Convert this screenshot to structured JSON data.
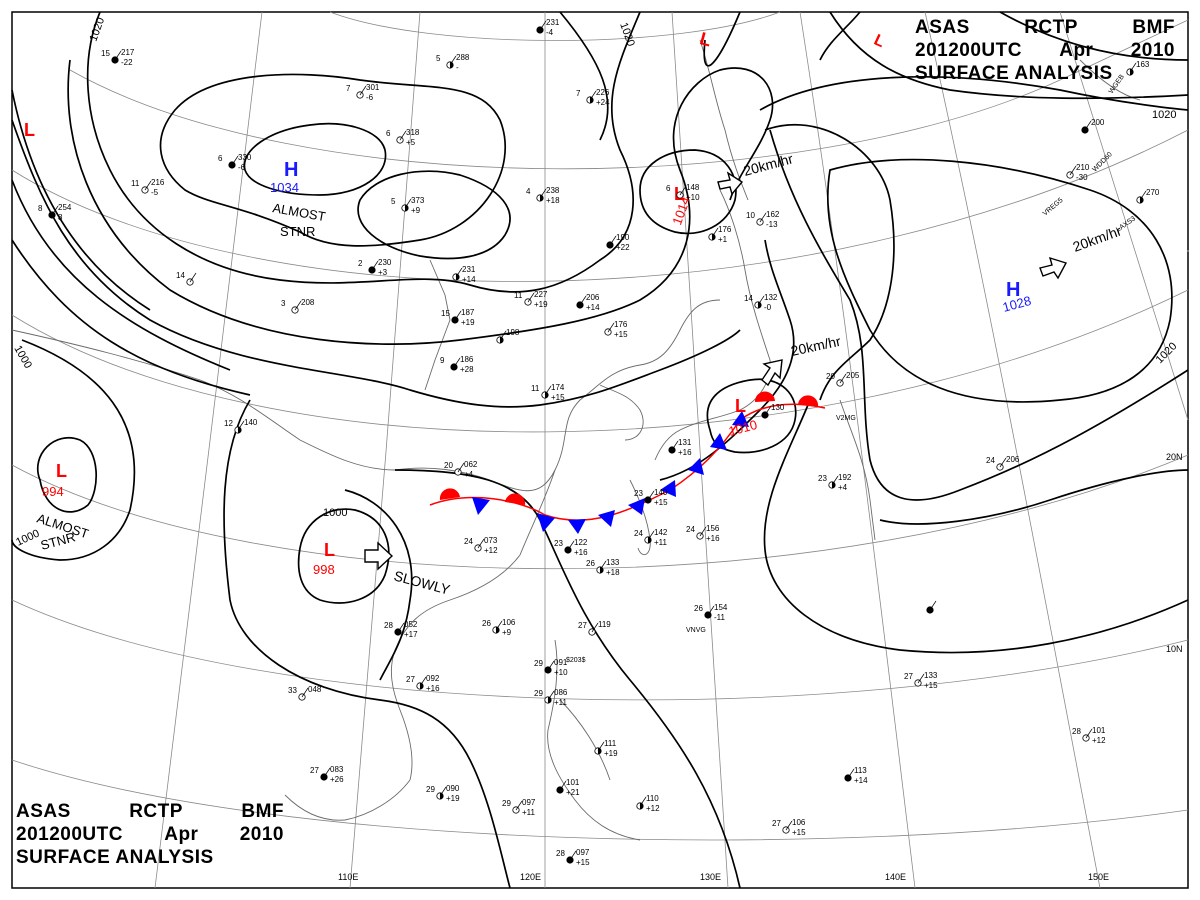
{
  "header_top": {
    "line1": [
      "ASAS",
      "RCTP",
      "BMF"
    ],
    "line2": [
      "201200UTC",
      "Apr",
      "2010"
    ],
    "line3": "SURFACE ANALYSIS"
  },
  "header_bottom": {
    "line1": [
      "ASAS",
      "RCTP",
      "BMF"
    ],
    "line2": [
      "201200UTC",
      "Apr",
      "2010"
    ],
    "line3": "SURFACE ANALYSIS"
  },
  "colors": {
    "high": "#1a1aff",
    "low": "#ff0000",
    "cold_front": "#0000ff",
    "warm_front": "#ff0000",
    "isobar": "#000000",
    "grid": "#888888",
    "coast": "#666666"
  },
  "grid_labels": {
    "longitudes": [
      "110E",
      "120E",
      "130E",
      "140E",
      "150E"
    ],
    "latitudes": [
      "20N",
      "10N"
    ]
  },
  "pressure_centers": [
    {
      "id": "high-mongolia",
      "type": "H",
      "value": "1034",
      "status": [
        "ALMOST",
        "STNR"
      ]
    },
    {
      "id": "high-pacific",
      "type": "H",
      "value": "1028",
      "motion": "20km/hr"
    },
    {
      "id": "low-nw-corner",
      "type": "L"
    },
    {
      "id": "low-burma",
      "type": "L",
      "value": "994",
      "status": [
        "ALMOST",
        "STNR"
      ]
    },
    {
      "id": "low-south-china",
      "type": "L",
      "value": "998",
      "motion": "SLOWLY"
    },
    {
      "id": "low-korea",
      "type": "L",
      "value": "1014",
      "motion": "20km/hr"
    },
    {
      "id": "low-japan",
      "type": "L",
      "value": "1010",
      "motion": "20km/hr"
    },
    {
      "id": "low-okhotsk",
      "type": "L"
    },
    {
      "id": "low-ne-corner",
      "type": "L"
    }
  ],
  "isobar_labels": [
    "1020",
    "1020",
    "1000",
    "1000",
    "1020",
    "1020",
    "1000"
  ],
  "station_plots": [
    {
      "id": "st-231",
      "t": "",
      "p": "231",
      "d": "-4"
    },
    {
      "id": "st-288",
      "t": "5",
      "p": "288",
      "d": "-"
    },
    {
      "id": "st-301",
      "t": "7",
      "p": "301",
      "d": "-6"
    },
    {
      "id": "st-217",
      "t": "15",
      "p": "217",
      "d": "-22"
    },
    {
      "id": "st-226",
      "t": "7",
      "p": "226",
      "d": "+24"
    },
    {
      "id": "st-318",
      "t": "6",
      "p": "318",
      "d": "+5"
    },
    {
      "id": "st-330",
      "t": "6",
      "p": "330",
      "d": "-6"
    },
    {
      "id": "st-373",
      "t": "5",
      "p": "373",
      "d": "+9"
    },
    {
      "id": "st-216",
      "t": "11",
      "p": "216",
      "d": "-5"
    },
    {
      "id": "st-254",
      "t": "8",
      "p": "254",
      "d": "8"
    },
    {
      "id": "st-238",
      "t": "4",
      "p": "238",
      "d": "+18"
    },
    {
      "id": "st-148",
      "t": "6",
      "p": "148",
      "d": "+10"
    },
    {
      "id": "st-190",
      "t": "",
      "p": "190",
      "d": "+22"
    },
    {
      "id": "st-176",
      "t": "",
      "p": "176",
      "d": "+1"
    },
    {
      "id": "st-162",
      "t": "10",
      "p": "162",
      "d": "-13"
    },
    {
      "id": "st-230",
      "t": "2",
      "p": "230",
      "d": "+3"
    },
    {
      "id": "st-231b",
      "t": "",
      "p": "231",
      "d": "+14"
    },
    {
      "id": "st-227",
      "t": "11",
      "p": "227",
      "d": "+19"
    },
    {
      "id": "st-206",
      "t": "",
      "p": "206",
      "d": "+14"
    },
    {
      "id": "st-132",
      "t": "14",
      "p": "132",
      "d": "-0"
    },
    {
      "id": "st-208",
      "t": "3",
      "p": "208",
      "d": ""
    },
    {
      "id": "st-187",
      "t": "15",
      "p": "187",
      "d": "+19"
    },
    {
      "id": "st-198",
      "t": "",
      "p": "198",
      "d": ""
    },
    {
      "id": "st-176b",
      "t": "",
      "p": "176",
      "d": "+15"
    },
    {
      "id": "st-186",
      "t": "9",
      "p": "186",
      "d": "+28"
    },
    {
      "id": "st-174",
      "t": "11",
      "p": "174",
      "d": "+15"
    },
    {
      "id": "st-205",
      "t": "20",
      "p": "205",
      "d": ""
    },
    {
      "id": "st-130",
      "t": "",
      "p": "130",
      "d": ""
    },
    {
      "id": "st-140a",
      "t": "12",
      "p": "140",
      "d": ""
    },
    {
      "id": "st-062",
      "t": "20",
      "p": "062",
      "d": "+4"
    },
    {
      "id": "st-131",
      "t": "",
      "p": "131",
      "d": "+16"
    },
    {
      "id": "st-192",
      "t": "23",
      "p": "192",
      "d": "+4"
    },
    {
      "id": "st-206b",
      "t": "24",
      "p": "206",
      "d": ""
    },
    {
      "id": "st-140",
      "t": "23",
      "p": "140",
      "d": "+15"
    },
    {
      "id": "st-142",
      "t": "24",
      "p": "142",
      "d": "+11"
    },
    {
      "id": "st-156",
      "t": "24",
      "p": "156",
      "d": "+16"
    },
    {
      "id": "st-122",
      "t": "23",
      "p": "122",
      "d": "+16"
    },
    {
      "id": "st-133",
      "t": "26",
      "p": "133",
      "d": "+18"
    },
    {
      "id": "st-073",
      "t": "24",
      "p": "073",
      "d": "+12"
    },
    {
      "id": "st-154",
      "t": "26",
      "p": "154",
      "d": "-11"
    },
    {
      "id": "st-106",
      "t": "26",
      "p": "106",
      "d": "+9"
    },
    {
      "id": "st-119",
      "t": "27",
      "p": "119",
      "d": ""
    },
    {
      "id": "st-052",
      "t": "28",
      "p": "052",
      "d": "+17"
    },
    {
      "id": "st-092",
      "t": "27",
      "p": "092",
      "d": "+16"
    },
    {
      "id": "st-048",
      "t": "33",
      "p": "048",
      "d": ""
    },
    {
      "id": "st-091",
      "t": "29",
      "p": "091",
      "d": "+10"
    },
    {
      "id": "st-086",
      "t": "29",
      "p": "086",
      "d": "+11"
    },
    {
      "id": "st-133b",
      "t": "27",
      "p": "133",
      "d": "+15"
    },
    {
      "id": "st-083",
      "t": "27",
      "p": "083",
      "d": "+26"
    },
    {
      "id": "st-111",
      "t": "",
      "p": "111",
      "d": "+19"
    },
    {
      "id": "st-101",
      "t": "28",
      "p": "101",
      "d": "+12"
    },
    {
      "id": "st-113",
      "t": "",
      "p": "113",
      "d": "+14"
    },
    {
      "id": "st-090",
      "t": "29",
      "p": "090",
      "d": "+19"
    },
    {
      "id": "st-097",
      "t": "29",
      "p": "097",
      "d": "+11"
    },
    {
      "id": "st-101b",
      "t": "",
      "p": "101",
      "d": "+21"
    },
    {
      "id": "st-110",
      "t": "",
      "p": "110",
      "d": "+12"
    },
    {
      "id": "st-106b",
      "t": "27",
      "p": "106",
      "d": "+15"
    },
    {
      "id": "st-097b",
      "t": "28",
      "p": "097",
      "d": "+15"
    },
    {
      "id": "st-270",
      "t": "",
      "p": "270",
      "d": ""
    },
    {
      "id": "st-210",
      "t": "",
      "p": "210",
      "d": "-30"
    },
    {
      "id": "st-200",
      "t": "",
      "p": "200",
      "d": ""
    },
    {
      "id": "st-163",
      "t": "",
      "p": "163",
      "d": ""
    },
    {
      "id": "st-244",
      "t": "14",
      "p": "",
      "d": ""
    },
    {
      "id": "st-189",
      "t": "",
      "p": "",
      "d": ""
    }
  ],
  "station_ids": [
    "WGEB",
    "WDD60",
    "VREG5",
    "LAXS3",
    "V2MG",
    "VNVG",
    "$203$"
  ]
}
